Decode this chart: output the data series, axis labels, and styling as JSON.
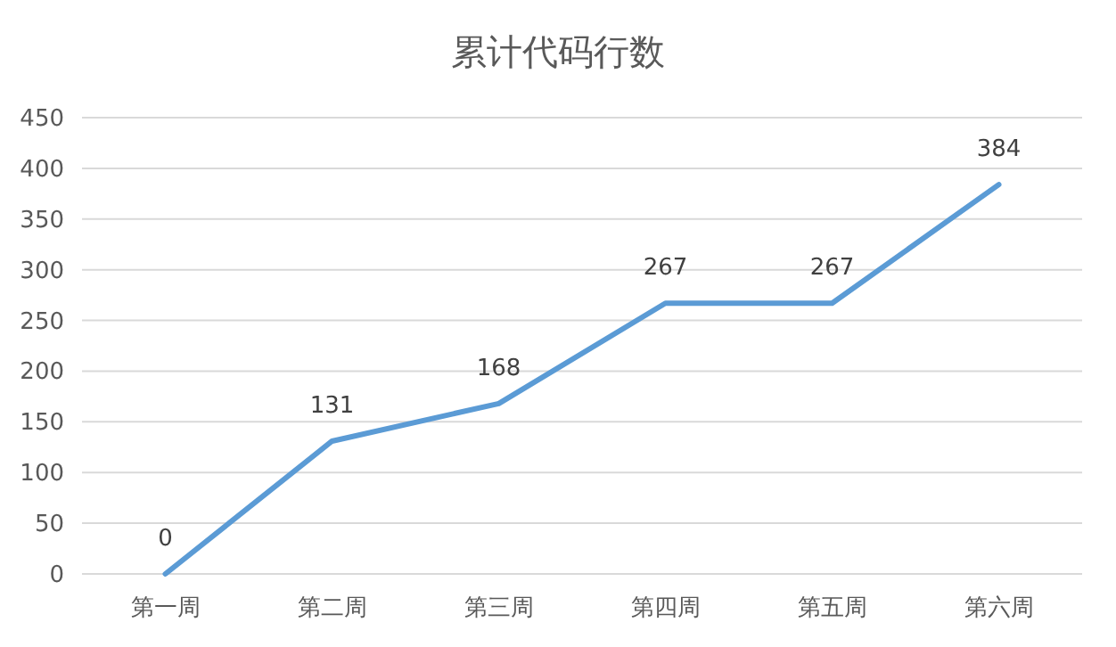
{
  "chart_data": {
    "type": "line",
    "title": "累计代码行数",
    "categories": [
      "第一周",
      "第二周",
      "第三周",
      "第四周",
      "第五周",
      "第六周"
    ],
    "series": [
      {
        "color": "#5b9bd5",
        "values": [
          0,
          131,
          168,
          267,
          267,
          384
        ]
      }
    ],
    "ylim": [
      0,
      450
    ],
    "yticks": [
      0,
      50,
      100,
      150,
      200,
      250,
      300,
      350,
      400,
      450
    ],
    "grid": "y",
    "marker": "none",
    "line_style": "solid",
    "data_labels": true
  }
}
